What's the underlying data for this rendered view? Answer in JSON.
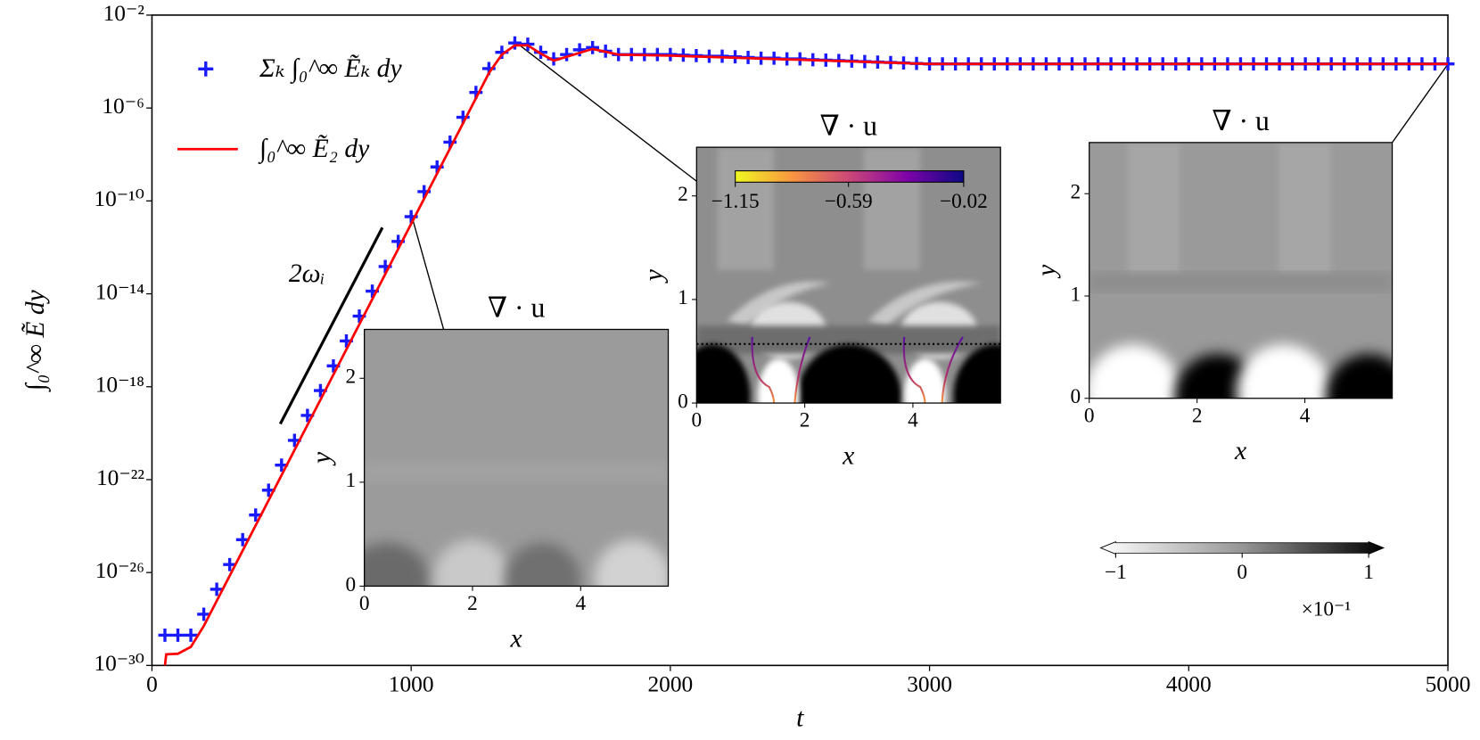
{
  "chart_data": {
    "type": "line",
    "xlabel": "t",
    "ylabel": "∫₀^∞ Ẽ dy",
    "xlim": [
      0,
      5000
    ],
    "xticks": [
      0,
      1000,
      2000,
      3000,
      4000,
      5000
    ],
    "ylim": [
      1e-30,
      0.01
    ],
    "log_y": true,
    "yticks": [
      {
        "value": 1e-30,
        "label": "10⁻³⁰"
      },
      {
        "value": 1e-26,
        "label": "10⁻²⁶"
      },
      {
        "value": 1e-22,
        "label": "10⁻²²"
      },
      {
        "value": 1e-18,
        "label": "10⁻¹⁸"
      },
      {
        "value": 1e-14,
        "label": "10⁻¹⁴"
      },
      {
        "value": 1e-10,
        "label": "10⁻¹⁰"
      },
      {
        "value": 1e-06,
        "label": "10⁻⁶"
      },
      {
        "value": 0.01,
        "label": "10⁻²"
      }
    ],
    "legend": "upper left",
    "series": [
      {
        "name": "Σₖ ∫₀^∞ Ẽₖ dy",
        "color": "#1a1aff",
        "marker": "+",
        "x": [
          50,
          100,
          150,
          200,
          250,
          300,
          350,
          400,
          450,
          500,
          550,
          600,
          650,
          700,
          750,
          800,
          850,
          900,
          950,
          1000,
          1050,
          1100,
          1150,
          1200,
          1250,
          1300,
          1350,
          1400,
          1450,
          1500,
          1550,
          1600,
          1650,
          1700,
          1750,
          1800,
          1850,
          1900,
          1950,
          2000,
          2050,
          2100,
          2150,
          2200,
          2250,
          2300,
          2350,
          2400,
          2450,
          2500,
          2550,
          2600,
          2650,
          2700,
          2750,
          2800,
          2850,
          2900,
          2950,
          3000,
          3050,
          3100,
          3150,
          3200,
          3250,
          3300,
          3350,
          3400,
          3450,
          3500,
          3550,
          3600,
          3650,
          3700,
          3750,
          3800,
          3850,
          3900,
          3950,
          4000,
          4050,
          4100,
          4150,
          4200,
          4250,
          4300,
          4350,
          4400,
          4450,
          4500,
          4550,
          4600,
          4650,
          4700,
          4750,
          4800,
          4850,
          4900,
          4950,
          5000
        ],
        "values": [
          2e-29,
          2e-29,
          2e-29,
          1.6e-28,
          1.9e-27,
          2.2e-26,
          2.6e-25,
          3e-24,
          3.5e-23,
          4.2e-22,
          4.9e-21,
          5.8e-20,
          6.8e-19,
          7.9e-18,
          9.3e-17,
          1.1e-15,
          1.3e-14,
          1.5e-13,
          1.8e-12,
          2.1e-11,
          2.5e-10,
          2.9e-09,
          3.4e-08,
          4e-07,
          4.7e-06,
          5e-05,
          0.00025,
          0.00063,
          0.00056,
          0.00025,
          0.00013,
          0.0002,
          0.00032,
          0.0004,
          0.00028,
          0.0002,
          0.0002,
          0.0002,
          0.0002,
          0.0002,
          0.00019,
          0.00018,
          0.00017,
          0.00017,
          0.00016,
          0.00015,
          0.00014,
          0.00014,
          0.00013,
          0.00013,
          0.00012,
          0.000115,
          0.00011,
          0.000105,
          0.0001,
          9.5e-05,
          9.1e-05,
          8.7e-05,
          8.3e-05,
          7.9e-05,
          7.9e-05,
          7.9e-05,
          7.9e-05,
          7.9e-05,
          7.9e-05,
          7.9e-05,
          7.9e-05,
          7.9e-05,
          7.9e-05,
          7.9e-05,
          7.9e-05,
          7.9e-05,
          7.9e-05,
          7.9e-05,
          7.9e-05,
          7.9e-05,
          7.9e-05,
          7.9e-05,
          7.9e-05,
          7.9e-05,
          7.9e-05,
          7.9e-05,
          7.9e-05,
          7.9e-05,
          7.9e-05,
          7.9e-05,
          7.9e-05,
          7.9e-05,
          7.9e-05,
          7.9e-05,
          7.9e-05,
          7.9e-05,
          7.9e-05,
          7.9e-05,
          7.9e-05,
          7.9e-05,
          7.9e-05,
          7.9e-05,
          7.9e-05,
          7.9e-05
        ]
      },
      {
        "name": "∫₀^∞ Ẽ₂ dy",
        "color": "#ff0000",
        "x": [
          50,
          55,
          100,
          150,
          200,
          1300,
          1350,
          1400,
          1450,
          1500,
          1550,
          1600,
          1700,
          1800,
          2000,
          3000,
          5000
        ],
        "values": [
          1e-30,
          3e-30,
          3.2e-30,
          6.3e-30,
          5e-29,
          3.2e-05,
          0.0002,
          0.0005,
          0.0005,
          0.00022,
          0.00011,
          0.00016,
          0.00035,
          0.0002,
          0.00018,
          7.9e-05,
          7.9e-05
        ]
      }
    ],
    "slope_line": {
      "label": "2ωᵢ",
      "x": [
        495,
        889
      ],
      "y": [
        2.5e-20,
        7.1e-12
      ]
    },
    "insets": [
      {
        "title": "∇ · u",
        "xlabel": "x",
        "ylabel": "y",
        "xlim": [
          0,
          5.62
        ],
        "ylim": [
          0,
          2.47
        ],
        "xticks": [
          0,
          2,
          4
        ],
        "yticks": [
          0,
          1,
          2
        ]
      },
      {
        "title": "∇ · u",
        "xlabel": "x",
        "ylabel": "y",
        "xlim": [
          0,
          5.62
        ],
        "ylim": [
          0,
          2.47
        ],
        "xticks": [
          0,
          2,
          4
        ],
        "yticks": [
          0,
          1,
          2
        ],
        "hline": 0.57
      },
      {
        "title": "∇ · u",
        "xlabel": "x",
        "ylabel": "y",
        "xlim": [
          0,
          5.62
        ],
        "ylim": [
          0,
          2.5
        ],
        "xticks": [
          0,
          2,
          4
        ],
        "yticks": [
          0,
          1,
          2
        ]
      }
    ],
    "colorbars": [
      {
        "colormap": "plasma_r",
        "lim": [
          -1.15,
          -0.02
        ],
        "ticks": [
          {
            "value": -1.15,
            "label": "−1.15"
          },
          {
            "value": -0.59,
            "label": "−0.59"
          },
          {
            "value": -0.02,
            "label": "−0.02"
          }
        ]
      },
      {
        "colormap": "Greys",
        "lim": [
          -1,
          1
        ],
        "multiplier": "×10⁻¹",
        "ticks": [
          {
            "value": -1,
            "label": "−1"
          },
          0,
          1
        ]
      }
    ]
  }
}
